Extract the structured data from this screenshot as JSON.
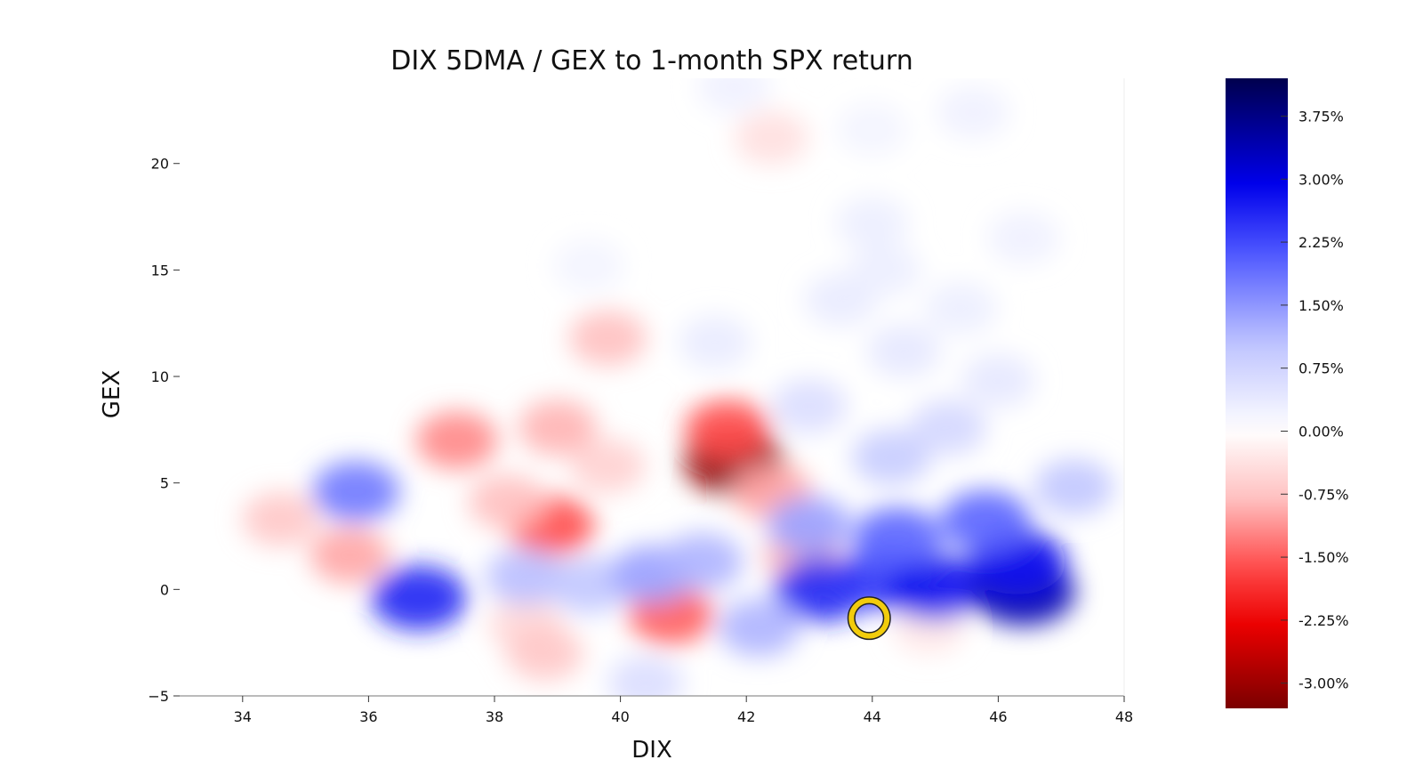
{
  "chart_data": {
    "type": "heatmap",
    "title": "DIX 5DMA / GEX to 1-month SPX return",
    "xlabel": "DIX",
    "ylabel": "GEX",
    "xlim": [
      33,
      48
    ],
    "ylim": [
      -5,
      24
    ],
    "x_ticks": [
      34,
      36,
      38,
      40,
      42,
      44,
      46,
      48
    ],
    "y_ticks": [
      -5,
      0,
      5,
      10,
      15,
      20
    ],
    "x_tick_labels": [
      "34",
      "36",
      "38",
      "40",
      "42",
      "44",
      "46",
      "48"
    ],
    "y_tick_labels": [
      "−5",
      "0",
      "5",
      "10",
      "15",
      "20"
    ],
    "colorbar": {
      "range": [
        -3.3,
        4.2
      ],
      "ticks": [
        3.75,
        3.0,
        2.25,
        1.5,
        0.75,
        0.0,
        -0.75,
        -1.5,
        -2.25,
        -3.0
      ],
      "tick_labels": [
        "3.75%",
        "3.00%",
        "2.25%",
        "1.50%",
        "0.75%",
        "0.00%",
        "-0.75%",
        "-1.50%",
        "-2.25%",
        "-3.00%"
      ],
      "colormap": "seismic_reversed",
      "low_color": "#7a0000",
      "mid_color": "#ffffff",
      "high_color": "#00004d"
    },
    "blobs": [
      {
        "x": 41.8,
        "y": 6.0,
        "value": -3.1
      },
      {
        "x": 41.7,
        "y": 7.5,
        "value": -1.6
      },
      {
        "x": 42.4,
        "y": 4.6,
        "value": -1.0
      },
      {
        "x": 37.4,
        "y": 7.0,
        "value": -1.2
      },
      {
        "x": 39.0,
        "y": 7.6,
        "value": -0.9
      },
      {
        "x": 39.8,
        "y": 5.8,
        "value": -0.6
      },
      {
        "x": 39.8,
        "y": 11.8,
        "value": -0.8
      },
      {
        "x": 38.9,
        "y": 3.0,
        "value": -1.6
      },
      {
        "x": 38.2,
        "y": 4.1,
        "value": -0.8
      },
      {
        "x": 35.7,
        "y": 1.6,
        "value": -1.0
      },
      {
        "x": 34.6,
        "y": 3.3,
        "value": -0.7
      },
      {
        "x": 40.8,
        "y": -1.2,
        "value": -1.5
      },
      {
        "x": 38.5,
        "y": -1.7,
        "value": -0.5
      },
      {
        "x": 38.8,
        "y": -3.0,
        "value": -0.7
      },
      {
        "x": 42.9,
        "y": 1.6,
        "value": -0.9
      },
      {
        "x": 42.4,
        "y": 21.2,
        "value": -0.4
      },
      {
        "x": 44.9,
        "y": -1.8,
        "value": -0.3
      },
      {
        "x": 35.8,
        "y": 4.6,
        "value": 1.8
      },
      {
        "x": 36.8,
        "y": -0.4,
        "value": 2.6
      },
      {
        "x": 38.5,
        "y": 0.6,
        "value": 1.1
      },
      {
        "x": 39.5,
        "y": 0.2,
        "value": 1.0
      },
      {
        "x": 40.5,
        "y": 0.7,
        "value": 1.4
      },
      {
        "x": 41.3,
        "y": 1.3,
        "value": 1.2
      },
      {
        "x": 43.0,
        "y": 3.0,
        "value": 1.4
      },
      {
        "x": 43.2,
        "y": 0.0,
        "value": 2.6
      },
      {
        "x": 44.2,
        "y": 0.5,
        "value": 2.4
      },
      {
        "x": 45.0,
        "y": 0.1,
        "value": 2.8
      },
      {
        "x": 46.4,
        "y": -0.1,
        "value": 3.4
      },
      {
        "x": 46.3,
        "y": 1.3,
        "value": 2.8
      },
      {
        "x": 45.8,
        "y": 3.2,
        "value": 2.0
      },
      {
        "x": 47.2,
        "y": 4.8,
        "value": 1.0
      },
      {
        "x": 44.4,
        "y": 2.4,
        "value": 2.0
      },
      {
        "x": 42.2,
        "y": -1.8,
        "value": 1.2
      },
      {
        "x": 40.4,
        "y": -4.4,
        "value": 0.6
      },
      {
        "x": 44.3,
        "y": 6.2,
        "value": 0.9
      },
      {
        "x": 45.2,
        "y": 7.6,
        "value": 0.7
      },
      {
        "x": 43.0,
        "y": 8.6,
        "value": 0.6
      },
      {
        "x": 44.5,
        "y": 11.2,
        "value": 0.4
      },
      {
        "x": 46.0,
        "y": 9.8,
        "value": 0.4
      },
      {
        "x": 43.5,
        "y": 13.6,
        "value": 0.35
      },
      {
        "x": 45.4,
        "y": 13.2,
        "value": 0.3
      },
      {
        "x": 41.5,
        "y": 11.6,
        "value": 0.35
      },
      {
        "x": 44.0,
        "y": 17.2,
        "value": 0.3
      },
      {
        "x": 44.2,
        "y": 15.0,
        "value": 0.3
      },
      {
        "x": 45.6,
        "y": 22.4,
        "value": 0.25
      },
      {
        "x": 41.8,
        "y": 23.6,
        "value": 0.25
      },
      {
        "x": 39.5,
        "y": 15.2,
        "value": 0.2
      },
      {
        "x": 46.4,
        "y": 16.5,
        "value": 0.25
      },
      {
        "x": 44.0,
        "y": 21.6,
        "value": 0.2
      }
    ],
    "marker": {
      "x": 43.95,
      "y": -1.35,
      "shape": "circle",
      "edge_color": "#f2cc0c",
      "edge_outline": "#222222"
    }
  }
}
